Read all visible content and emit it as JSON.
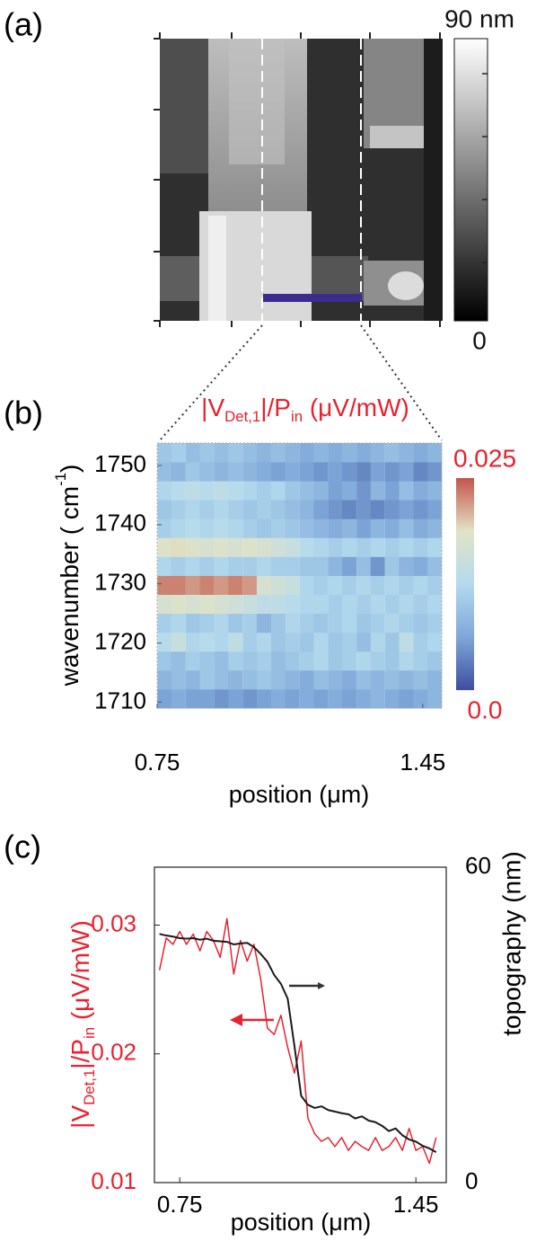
{
  "chart_data": [
    {
      "type": "image",
      "label": "(a)",
      "colorbar_lim": [
        0,
        90
      ],
      "colorbar_ticks": [
        {
          "value": 90,
          "label": "90 nm"
        },
        0
      ]
    },
    {
      "type": "heatmap",
      "label": "(b)",
      "title_parts": [
        {
          "text": "|V"
        },
        {
          "text": "Det,1",
          "sub": true
        },
        {
          "text": "|/P"
        },
        {
          "text": "in",
          "sub": true
        },
        {
          "text": " (μV/mW)"
        }
      ],
      "xlabel": "position (μm)",
      "ylabel_parts": [
        {
          "text": "wavenumber ( cm"
        },
        {
          "text": "-1",
          "sup": true
        },
        {
          "text": ")"
        }
      ],
      "x": [
        0.769,
        0.806,
        0.844,
        0.881,
        0.919,
        0.956,
        0.994,
        1.031,
        1.069,
        1.106,
        1.144,
        1.181,
        1.219,
        1.256,
        1.294,
        1.331,
        1.369,
        1.406,
        1.444,
        1.481
      ],
      "y": [
        1710.6,
        1713.8,
        1717.0,
        1720.2,
        1723.4,
        1726.6,
        1729.8,
        1733.0,
        1736.2,
        1739.4,
        1742.6,
        1745.8,
        1749.0,
        1752.2
      ],
      "z": [
        [
          0.006,
          0.007,
          0.006,
          0.006,
          0.005,
          0.006,
          0.005,
          0.006,
          0.007,
          0.006,
          0.007,
          0.006,
          0.007,
          0.006,
          0.007,
          0.008,
          0.007,
          0.006,
          0.007,
          0.008
        ],
        [
          0.008,
          0.009,
          0.008,
          0.01,
          0.009,
          0.008,
          0.009,
          0.01,
          0.009,
          0.008,
          0.007,
          0.009,
          0.008,
          0.007,
          0.009,
          0.008,
          0.009,
          0.008,
          0.009,
          0.008
        ],
        [
          0.01,
          0.009,
          0.011,
          0.01,
          0.009,
          0.011,
          0.01,
          0.011,
          0.009,
          0.01,
          0.011,
          0.012,
          0.01,
          0.011,
          0.012,
          0.011,
          0.01,
          0.012,
          0.011,
          0.01
        ],
        [
          0.013,
          0.015,
          0.012,
          0.013,
          0.012,
          0.014,
          0.011,
          0.012,
          0.01,
          0.011,
          0.01,
          0.012,
          0.01,
          0.011,
          0.009,
          0.012,
          0.01,
          0.014,
          0.011,
          0.012
        ],
        [
          0.011,
          0.012,
          0.01,
          0.011,
          0.012,
          0.01,
          0.011,
          0.008,
          0.01,
          0.012,
          0.011,
          0.01,
          0.011,
          0.012,
          0.01,
          0.011,
          0.012,
          0.011,
          0.01,
          0.011
        ],
        [
          0.017,
          0.018,
          0.017,
          0.018,
          0.017,
          0.016,
          0.015,
          0.014,
          0.014,
          0.013,
          0.012,
          0.012,
          0.011,
          0.012,
          0.011,
          0.012,
          0.011,
          0.012,
          0.011,
          0.012
        ],
        [
          0.023,
          0.023,
          0.022,
          0.023,
          0.022,
          0.023,
          0.022,
          0.017,
          0.016,
          0.015,
          0.012,
          0.011,
          0.012,
          0.011,
          0.012,
          0.011,
          0.012,
          0.011,
          0.012,
          0.011
        ],
        [
          0.012,
          0.011,
          0.012,
          0.011,
          0.012,
          0.011,
          0.011,
          0.012,
          0.011,
          0.011,
          0.01,
          0.01,
          0.008,
          0.006,
          0.009,
          0.005,
          0.01,
          0.008,
          0.007,
          0.009
        ],
        [
          0.018,
          0.019,
          0.018,
          0.017,
          0.018,
          0.017,
          0.018,
          0.017,
          0.016,
          0.015,
          0.013,
          0.012,
          0.011,
          0.012,
          0.011,
          0.012,
          0.011,
          0.012,
          0.011,
          0.012
        ],
        [
          0.011,
          0.012,
          0.013,
          0.012,
          0.013,
          0.012,
          0.011,
          0.01,
          0.011,
          0.01,
          0.009,
          0.008,
          0.007,
          0.008,
          0.006,
          0.008,
          0.007,
          0.009,
          0.007,
          0.008
        ],
        [
          0.01,
          0.011,
          0.012,
          0.011,
          0.012,
          0.011,
          0.01,
          0.011,
          0.01,
          0.009,
          0.008,
          0.006,
          0.005,
          0.004,
          0.005,
          0.004,
          0.005,
          0.006,
          0.005,
          0.006
        ],
        [
          0.012,
          0.013,
          0.014,
          0.013,
          0.014,
          0.013,
          0.012,
          0.011,
          0.012,
          0.01,
          0.009,
          0.008,
          0.006,
          0.007,
          0.005,
          0.008,
          0.006,
          0.009,
          0.007,
          0.008
        ],
        [
          0.009,
          0.008,
          0.01,
          0.009,
          0.008,
          0.009,
          0.008,
          0.007,
          0.006,
          0.007,
          0.006,
          0.005,
          0.006,
          0.005,
          0.004,
          0.006,
          0.005,
          0.006,
          0.004,
          0.005
        ],
        [
          0.01,
          0.011,
          0.009,
          0.01,
          0.009,
          0.01,
          0.009,
          0.008,
          0.009,
          0.008,
          0.007,
          0.008,
          0.007,
          0.008,
          0.007,
          0.008,
          0.009,
          0.008,
          0.007,
          0.008
        ]
      ],
      "xlim": [
        0.75,
        1.5
      ],
      "ylim": [
        1709,
        1753.8
      ],
      "xticks": [
        0.75,
        1.45
      ],
      "yticks": [
        1710,
        1720,
        1730,
        1740,
        1750
      ],
      "colorbar_lim": [
        0,
        0.025
      ],
      "colorbar_ticks": [
        0.025,
        {
          "value": 0,
          "label": "0.0"
        }
      ],
      "colormap": [
        "#3d4f9f",
        "#7ea7d8",
        "#b4daee",
        "#e2e3c5",
        "#c2554a"
      ]
    },
    {
      "type": "line",
      "label": "(c)",
      "xlabel": "position (μm)",
      "ylabel_parts": [
        {
          "text": "|V"
        },
        {
          "text": "Det,1",
          "sub": true
        },
        {
          "text": "|/P"
        },
        {
          "text": "in",
          "sub": true
        },
        {
          "text": " (μV/mW)"
        }
      ],
      "y2label": "topography (nm)",
      "x": [
        0.69,
        0.71,
        0.73,
        0.75,
        0.77,
        0.79,
        0.81,
        0.83,
        0.85,
        0.87,
        0.89,
        0.91,
        0.93,
        0.95,
        0.97,
        0.99,
        1.01,
        1.03,
        1.05,
        1.07,
        1.09,
        1.11,
        1.13,
        1.15,
        1.17,
        1.19,
        1.21,
        1.23,
        1.25,
        1.27,
        1.29,
        1.31,
        1.33,
        1.35,
        1.37,
        1.39,
        1.41,
        1.43,
        1.45,
        1.47,
        1.49,
        1.51
      ],
      "series": [
        {
          "color": "#e52330",
          "values": [
            0.0265,
            0.029,
            0.0285,
            0.0295,
            0.0285,
            0.0293,
            0.028,
            0.0295,
            0.0288,
            0.0275,
            0.0305,
            0.0262,
            0.0288,
            0.0272,
            0.0285,
            0.0258,
            0.022,
            0.0215,
            0.023,
            0.0205,
            0.0185,
            0.021,
            0.015,
            0.0138,
            0.0132,
            0.0135,
            0.0128,
            0.0135,
            0.0125,
            0.0132,
            0.0128,
            0.0125,
            0.0135,
            0.0125,
            0.0128,
            0.0135,
            0.0125,
            0.0142,
            0.0125,
            0.0128,
            0.0115,
            0.0135
          ]
        },
        {
          "color": "#1a1a1a",
          "axis": "y2",
          "values": [
            47.3,
            47.0,
            46.8,
            46.5,
            46.4,
            46.5,
            46.2,
            46.4,
            46.0,
            45.9,
            45.8,
            45.3,
            45.5,
            45.6,
            44.8,
            43.5,
            42.0,
            39.5,
            37.8,
            35.0,
            26.0,
            16.5,
            14.8,
            14.2,
            14.5,
            13.8,
            13.5,
            13.2,
            13.0,
            12.2,
            12.6,
            11.8,
            11.5,
            10.8,
            9.8,
            10.3,
            9.0,
            8.2,
            7.8,
            7.0,
            6.5,
            5.8
          ]
        }
      ],
      "xlim": [
        0.675,
        1.54
      ],
      "ylim": [
        0.01,
        0.0345
      ],
      "y2lim": [
        0,
        60
      ],
      "xticks": [
        0.75,
        1.45
      ],
      "yticks": [
        0.01,
        0.02,
        0.03
      ],
      "y2ticks": [
        0,
        60
      ]
    }
  ]
}
